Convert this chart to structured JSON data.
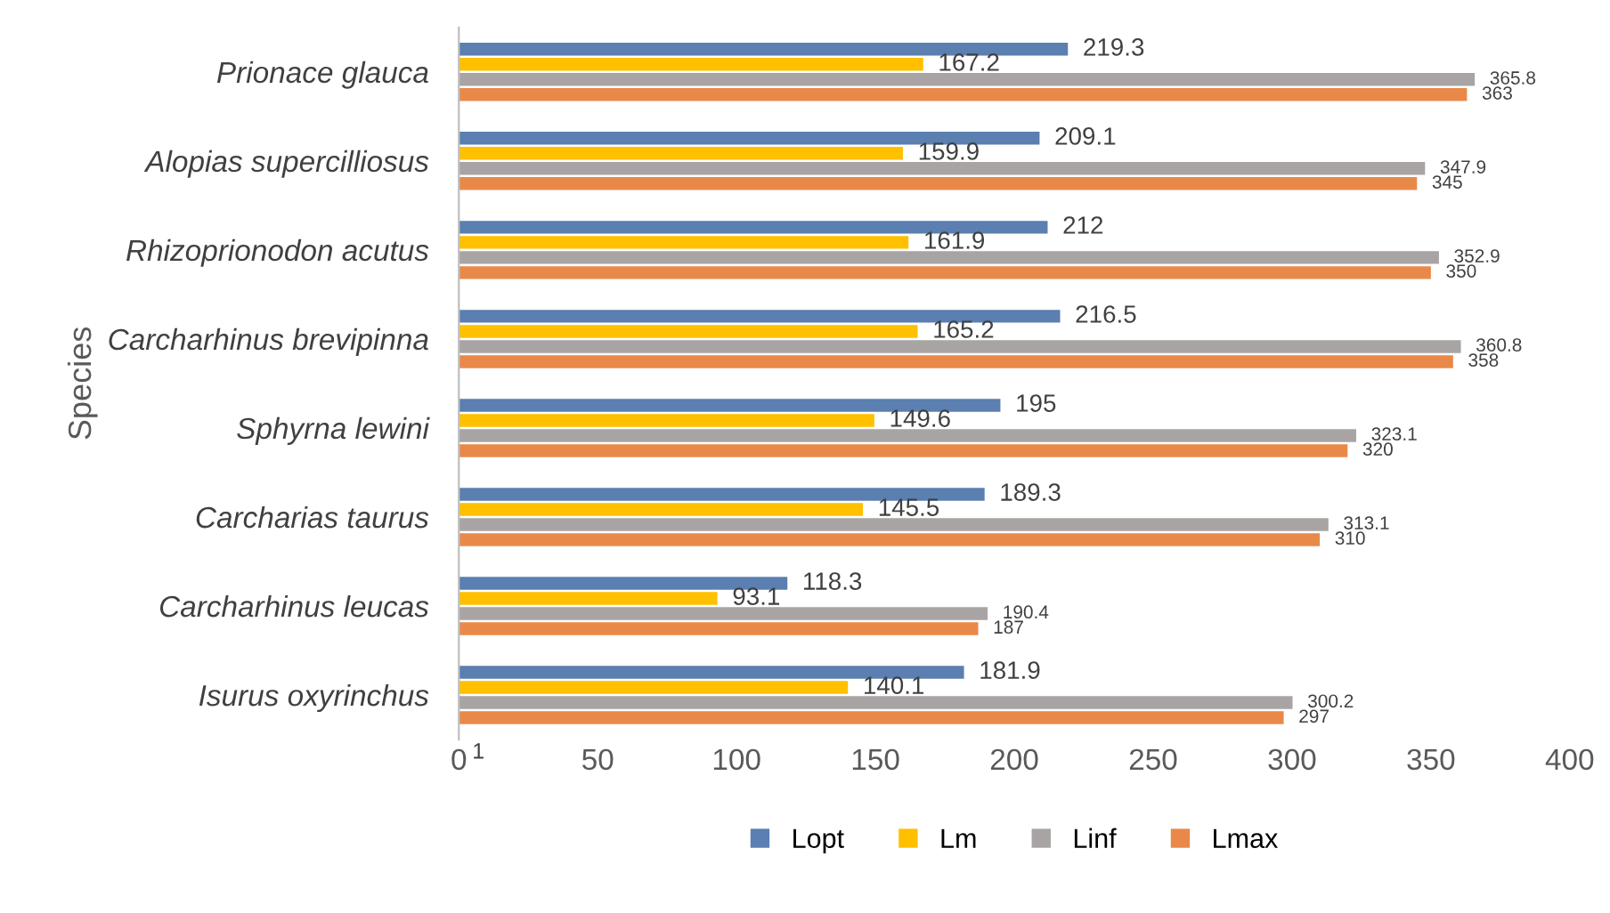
{
  "chart_data": {
    "type": "bar",
    "orientation": "horizontal",
    "ylabel": "Species",
    "categories": [
      "Prionace glauca",
      "Alopias supercilliosus",
      "Rhizoprionodon acutus",
      "Carcharhinus brevipinna",
      "Sphyrna lewini",
      "Carcharias taurus",
      "Carcharhinus leucas",
      "Isurus oxyrinchus"
    ],
    "series": [
      {
        "name": "Lopt",
        "color": "#5a7fb0",
        "values": [
          219.3,
          209.1,
          212,
          216.5,
          195,
          189.3,
          118.3,
          181.9
        ]
      },
      {
        "name": "Lm",
        "color": "#ffc000",
        "values": [
          167.2,
          159.9,
          161.9,
          165.2,
          149.6,
          145.5,
          93.1,
          140.1
        ]
      },
      {
        "name": "Linf",
        "color": "#a9a4a4",
        "values": [
          365.8,
          347.9,
          352.9,
          360.8,
          323.1,
          313.1,
          190.4,
          300.2
        ]
      },
      {
        "name": "Lmax",
        "color": "#e8894a",
        "values": [
          363,
          345,
          350,
          358,
          320,
          310,
          187,
          297
        ]
      }
    ],
    "xlim": [
      0,
      400
    ],
    "xticks": [
      0,
      50,
      100,
      150,
      200,
      250,
      300,
      350,
      400
    ],
    "data_labels": true,
    "legend": "bottom",
    "grid": false,
    "annotations": [
      "1"
    ]
  }
}
